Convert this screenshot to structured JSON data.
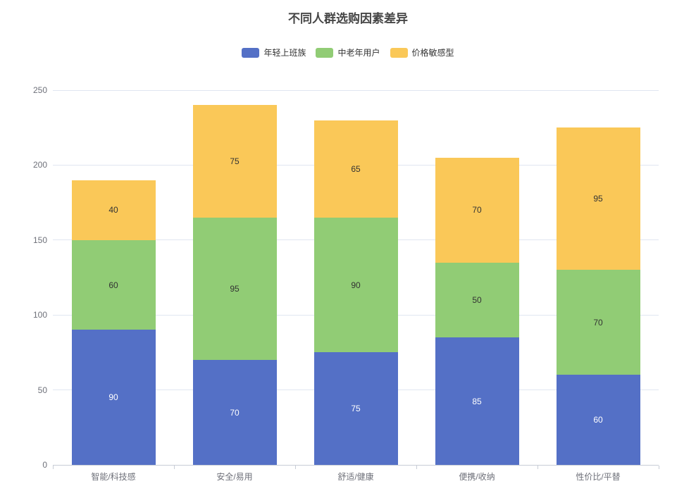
{
  "title": "不同人群选购因素差异",
  "chart_data": {
    "type": "bar",
    "stacked": true,
    "title": "不同人群选购因素差异",
    "categories": [
      "智能/科技感",
      "安全/易用",
      "舒适/健康",
      "便携/收纳",
      "性价比/平替"
    ],
    "series": [
      {
        "name": "年轻上班族",
        "color": "#5470C6",
        "label_color": "#ffffff",
        "values": [
          90,
          70,
          75,
          85,
          60
        ]
      },
      {
        "name": "中老年用户",
        "color": "#91CC75",
        "label_color": "#333333",
        "values": [
          60,
          95,
          90,
          50,
          70
        ]
      },
      {
        "name": "价格敏感型",
        "color": "#FAC858",
        "label_color": "#333333",
        "values": [
          40,
          75,
          65,
          70,
          95
        ]
      }
    ],
    "totals": [
      190,
      240,
      230,
      205,
      225
    ],
    "xlabel": "",
    "ylabel": "",
    "ylim": [
      0,
      250
    ],
    "yticks": [
      0,
      50,
      100,
      150,
      200,
      250
    ],
    "grid": true,
    "legend_position": "top",
    "bar_labels": "inside-center"
  }
}
